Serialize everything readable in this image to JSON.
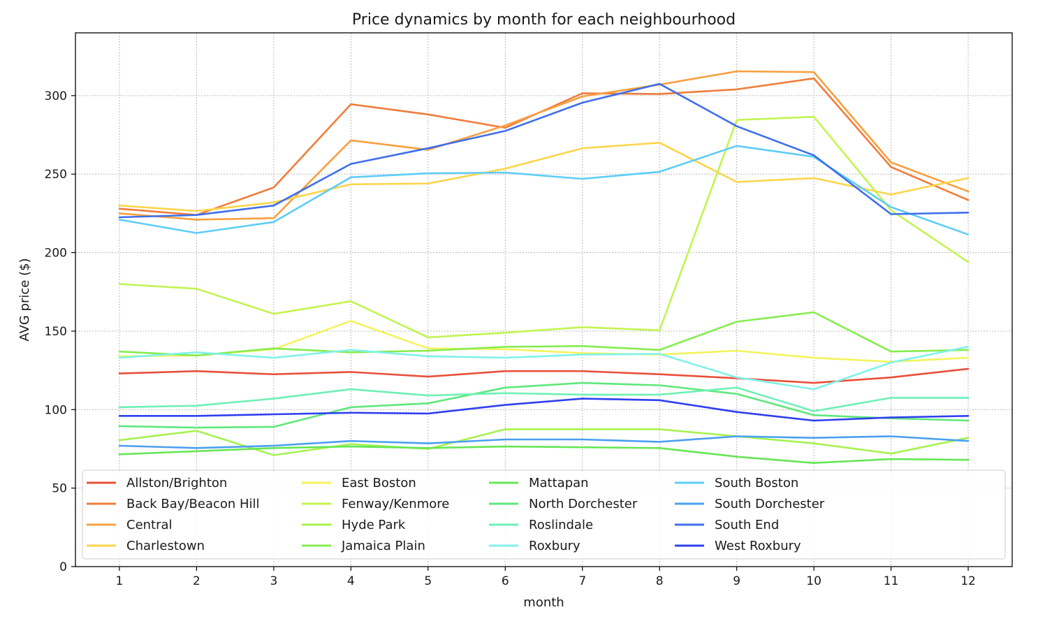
{
  "chart_data": {
    "type": "line",
    "title": "Price dynamics by month for each neighbourhood",
    "xlabel": "month",
    "ylabel": "AVG price ($)",
    "x": [
      1,
      2,
      3,
      4,
      5,
      6,
      7,
      8,
      9,
      10,
      11,
      12
    ],
    "xlim": [
      0.43,
      12.57
    ],
    "ylim": [
      0,
      340
    ],
    "yticks": [
      0,
      50,
      100,
      150,
      200,
      250,
      300
    ],
    "grid": true,
    "legend_position": "lower-left",
    "legend_columns": 5,
    "series": [
      {
        "name": "Allston/Brighton",
        "color": "#e8503a",
        "values": [
          123,
          124.5,
          122.5,
          124,
          121,
          124.5,
          124.5,
          122.5,
          120,
          117,
          120.5,
          126
        ]
      },
      {
        "name": "Back Bay/Beacon Hill",
        "color": "#f07c3a",
        "values": [
          228,
          224,
          241.5,
          294.5,
          288,
          279.5,
          301.5,
          301,
          304,
          311,
          254.5,
          233.5
        ]
      },
      {
        "name": "Central",
        "color": "#f7a03f",
        "values": [
          225,
          221,
          222,
          271.5,
          265.5,
          281,
          299.5,
          307,
          315.5,
          315,
          257.5,
          239
        ]
      },
      {
        "name": "Charlestown",
        "color": "#fcd54a",
        "values": [
          230,
          226.5,
          232,
          243.5,
          244,
          253.5,
          266.5,
          270,
          245,
          247.5,
          237,
          247.5
        ]
      },
      {
        "name": "East Boston",
        "color": "#f3f45c",
        "values": [
          134,
          134.5,
          138.5,
          156.5,
          139,
          138.5,
          136,
          135,
          137.5,
          133,
          130.5,
          133
        ]
      },
      {
        "name": "Fenway/Kenmore",
        "color": "#c3f451",
        "values": [
          180,
          177,
          161,
          169,
          146,
          149,
          152.5,
          150.5,
          284.5,
          286.5,
          227,
          194
        ]
      },
      {
        "name": "Hyde Park",
        "color": "#a7f24f",
        "values": [
          80.5,
          86.5,
          71,
          78,
          75,
          87.5,
          87.5,
          87.5,
          83,
          78.5,
          72,
          82
        ]
      },
      {
        "name": "Jamaica Plain",
        "color": "#86ec4f",
        "values": [
          137,
          134.5,
          139,
          136.5,
          137.5,
          140,
          140.5,
          138,
          156,
          162,
          137,
          138
        ]
      },
      {
        "name": "Mattapan",
        "color": "#66e655",
        "values": [
          71.5,
          73.5,
          75.5,
          76.5,
          75.5,
          76.5,
          76,
          75.5,
          70,
          66,
          68.5,
          68
        ]
      },
      {
        "name": "North Dorchester",
        "color": "#5fe77c",
        "values": [
          89.5,
          88.5,
          89,
          101.5,
          104,
          114,
          117,
          115.5,
          110,
          96.5,
          94.5,
          93
        ]
      },
      {
        "name": "Roslindale",
        "color": "#6ff0b5",
        "values": [
          101.5,
          102.5,
          107,
          113,
          109,
          110.5,
          109.5,
          109.5,
          114,
          99,
          107.5,
          107.5
        ]
      },
      {
        "name": "Roxbury",
        "color": "#7ff2e9",
        "values": [
          133,
          136.5,
          133,
          138,
          134,
          133,
          135,
          135.5,
          120.5,
          113,
          130,
          140
        ]
      },
      {
        "name": "South Boston",
        "color": "#5dcdf7",
        "values": [
          221,
          212.5,
          219.5,
          248,
          250.5,
          251,
          247,
          251.5,
          268,
          261,
          229,
          211.5
        ]
      },
      {
        "name": "South Dorchester",
        "color": "#4aa0ef",
        "values": [
          77,
          75.5,
          77,
          80,
          78.5,
          81,
          81,
          79.5,
          83,
          82,
          83,
          80
        ]
      },
      {
        "name": "South End",
        "color": "#3f6fea",
        "values": [
          222.5,
          224,
          230,
          256.5,
          266.5,
          277.5,
          295.5,
          307.5,
          280.5,
          262,
          224.5,
          225.5
        ]
      },
      {
        "name": "West Roxbury",
        "color": "#2f3ff0",
        "values": [
          96,
          96,
          97,
          98,
          97.5,
          103,
          107,
          106,
          98.5,
          93,
          95,
          96
        ]
      }
    ]
  }
}
